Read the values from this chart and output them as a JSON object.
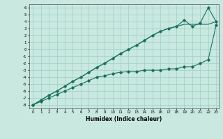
{
  "xlabel": "Humidex (Indice chaleur)",
  "background_color": "#c8e8e0",
  "grid_color": "#9ecfc4",
  "line_color": "#1a6e5e",
  "xlim_min": -0.5,
  "xlim_max": 23.3,
  "ylim_min": -8.5,
  "ylim_max": 6.5,
  "xticks": [
    0,
    1,
    2,
    3,
    4,
    5,
    6,
    7,
    8,
    9,
    10,
    11,
    12,
    13,
    14,
    15,
    16,
    17,
    18,
    19,
    20,
    21,
    22,
    23
  ],
  "yticks": [
    -8,
    -7,
    -6,
    -5,
    -4,
    -3,
    -2,
    -1,
    0,
    1,
    2,
    3,
    4,
    5,
    6
  ],
  "x_values": [
    0,
    1,
    2,
    3,
    4,
    5,
    6,
    7,
    8,
    9,
    10,
    11,
    12,
    13,
    14,
    15,
    16,
    17,
    18,
    19,
    20,
    21,
    22,
    23
  ],
  "line_straight_y": [
    -8,
    -7.3,
    -6.6,
    -6.0,
    -5.3,
    -4.6,
    -4.0,
    -3.3,
    -2.6,
    -2.0,
    -1.3,
    -0.6,
    0.0,
    0.6,
    1.3,
    2.0,
    2.6,
    3.0,
    3.3,
    3.6,
    3.6,
    3.6,
    3.6,
    4.0
  ],
  "line_mid_y": [
    -8,
    -7.5,
    -7,
    -6.5,
    -6,
    -5.5,
    -5,
    -4.5,
    -4,
    -3.8,
    -3.5,
    -3.3,
    -3.2,
    -3.2,
    -3.0,
    -3.0,
    -3.0,
    -2.8,
    -2.8,
    -2.5,
    -2.5,
    -2.0,
    -1.5,
    3.5
  ],
  "line_top_y": [
    -8,
    -7.3,
    -6.6,
    -6.0,
    -5.3,
    -4.6,
    -4.0,
    -3.3,
    -2.6,
    -2.0,
    -1.3,
    -0.6,
    0.0,
    0.6,
    1.3,
    2.0,
    2.6,
    3.0,
    3.3,
    4.2,
    3.3,
    3.8,
    6.0,
    4.0
  ]
}
